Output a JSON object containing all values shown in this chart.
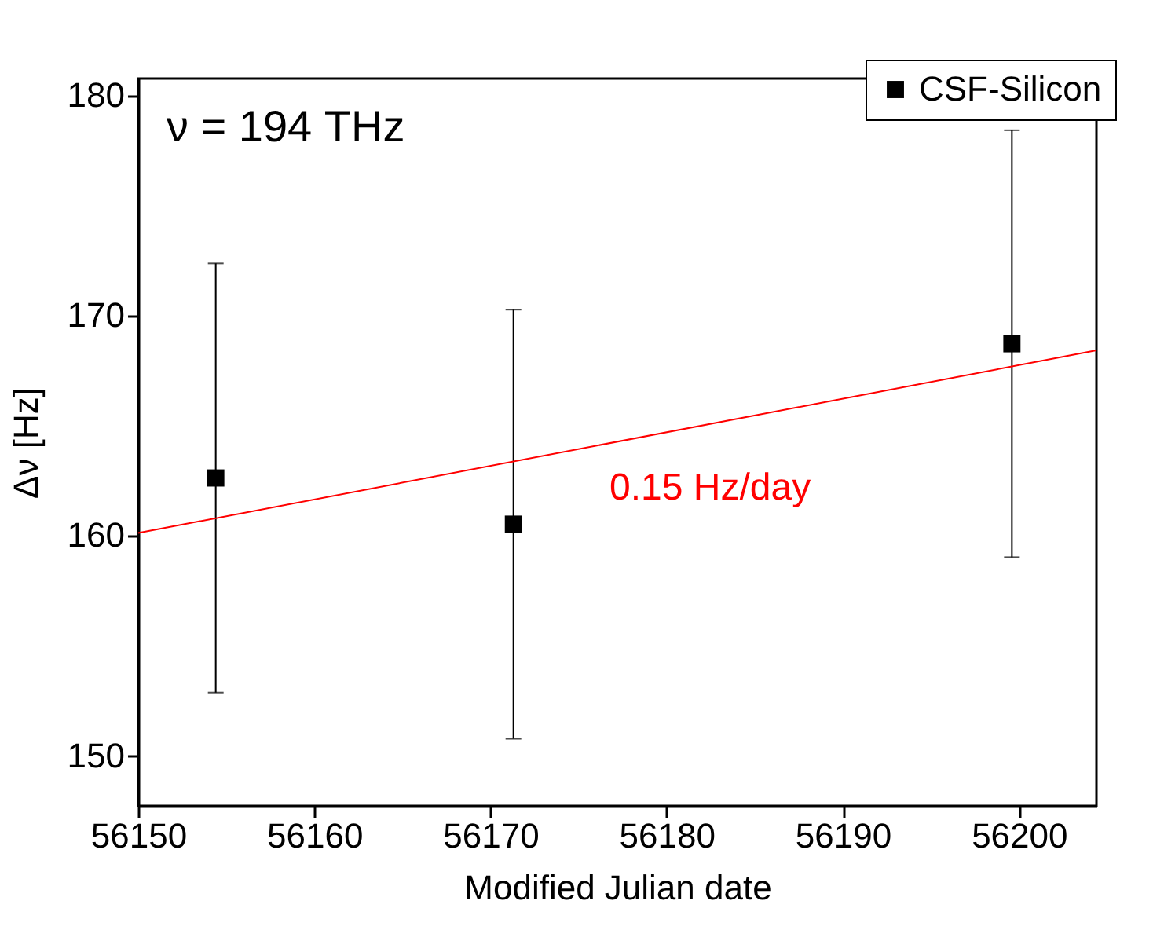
{
  "chart_data": {
    "type": "scatter",
    "xlabel": "Modified Julian date",
    "ylabel": "Δν [Hz]",
    "annotations": [
      "ν = 194 THz"
    ],
    "xlim": [
      56150,
      56204.4
    ],
    "xticks": [
      56150,
      56160,
      56170,
      56180,
      56190,
      56200
    ],
    "ylim": [
      147.7,
      180.75
    ],
    "yticks": [
      150,
      160,
      170,
      180
    ],
    "grid": false,
    "legend": "top right",
    "marker": "square",
    "series": [
      {
        "name": "CSF-Silicon",
        "color": "#000000",
        "x": [
          56154.4,
          56171.3,
          56199.6
        ],
        "values": [
          162.6,
          160.5,
          168.7
        ],
        "errors": [
          9.75,
          9.75,
          9.7
        ]
      },
      {
        "name": "0.15 Hz/day",
        "type": "line",
        "color": "#ff0000",
        "marker": "none",
        "x": [
          56150,
          56204.4
        ],
        "values": [
          160.1,
          168.4
        ]
      }
    ]
  }
}
